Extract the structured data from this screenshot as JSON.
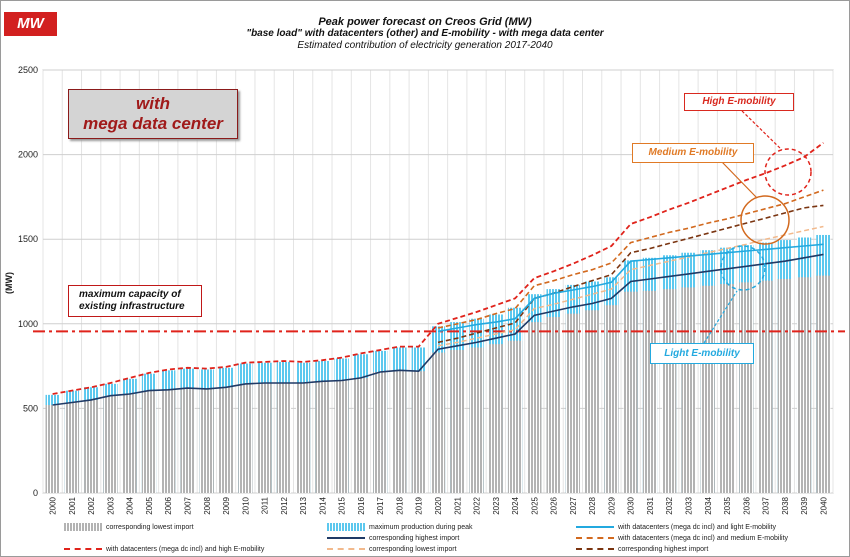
{
  "badge": "MW",
  "title_lines": [
    "Peak power forecast on Creos Grid (MW)",
    "\"base load\" with datacenters (other) and E-mobility  -  with mega data center",
    "Estimated contribution of electricity generation 2017-2040"
  ],
  "annotations": {
    "mega_line1": "with",
    "mega_line2": "mega data center",
    "max_capacity_line1": "maximum capacity of",
    "max_capacity_line2": "existing infrastructure",
    "high": "High E-mobility",
    "medium": "Medium E-mobility",
    "light": "Light E-mobility"
  },
  "colors": {
    "badge": "#d2201f",
    "grey_bar": "#b3b3b3",
    "cyan_bar": "#5cc8ee",
    "light_line": "#23a9df",
    "highest_line": "#1f3a66",
    "medium_line": "#d2691e",
    "high_line": "#e0231b",
    "lowest_dashed": "#f2b98c",
    "highest_dashed": "#7a3410",
    "capacity_line": "#e0231b"
  },
  "chart_data": {
    "type": "bar",
    "title": "Peak power forecast on Creos Grid (MW)",
    "ylabel": "(MW)",
    "ylim": [
      0,
      2500
    ],
    "yticks": [
      0,
      500,
      1000,
      1500,
      2000,
      2500
    ],
    "grid": true,
    "categories": [
      "2000",
      "2001",
      "2002",
      "2003",
      "2004",
      "2005",
      "2006",
      "2007",
      "2008",
      "2009",
      "2010",
      "2011",
      "2012",
      "2013",
      "2014",
      "2015",
      "2016",
      "2017",
      "2018",
      "2019",
      "2020",
      "2021",
      "2022",
      "2023",
      "2024",
      "2025",
      "2026",
      "2027",
      "2028",
      "2029",
      "2030",
      "2031",
      "2032",
      "2033",
      "2034",
      "2035",
      "2036",
      "2037",
      "2038",
      "2039",
      "2040"
    ],
    "capacity_line": 955,
    "series": [
      {
        "name": "corresponding lowest import",
        "kind": "bar",
        "values": [
          520,
          535,
          550,
          575,
          585,
          605,
          610,
          620,
          615,
          625,
          645,
          650,
          650,
          650,
          660,
          665,
          680,
          715,
          725,
          720,
          830,
          845,
          860,
          880,
          900,
          1010,
          1040,
          1060,
          1080,
          1110,
          1190,
          1195,
          1205,
          1215,
          1225,
          1235,
          1245,
          1255,
          1265,
          1275,
          1285
        ]
      },
      {
        "name": "maximum production during peak",
        "kind": "bar",
        "values": [
          580,
          605,
          625,
          645,
          675,
          705,
          725,
          735,
          730,
          740,
          765,
          770,
          775,
          770,
          780,
          795,
          820,
          840,
          860,
          860,
          985,
          1010,
          1030,
          1055,
          1095,
          1175,
          1205,
          1230,
          1250,
          1275,
          1375,
          1390,
          1405,
          1420,
          1435,
          1450,
          1465,
          1480,
          1495,
          1510,
          1525
        ]
      },
      {
        "name": "with datacenters (mega dc incl) and light E-mobility",
        "kind": "line",
        "values": [
          null,
          null,
          null,
          null,
          null,
          null,
          null,
          null,
          null,
          null,
          null,
          null,
          null,
          null,
          null,
          null,
          null,
          null,
          null,
          null,
          955,
          975,
          995,
          1010,
          1030,
          1150,
          1180,
          1200,
          1220,
          1245,
          1370,
          1380,
          1390,
          1400,
          1410,
          1420,
          1430,
          1440,
          1450,
          1460,
          1470
        ]
      },
      {
        "name": "corresponding highest import",
        "kind": "line",
        "values": [
          520,
          535,
          550,
          575,
          585,
          605,
          610,
          620,
          615,
          625,
          645,
          650,
          650,
          650,
          660,
          665,
          680,
          715,
          725,
          720,
          850,
          870,
          890,
          915,
          940,
          1050,
          1075,
          1100,
          1120,
          1150,
          1250,
          1265,
          1280,
          1295,
          1310,
          1325,
          1340,
          1355,
          1370,
          1390,
          1410
        ]
      },
      {
        "name": "with datacenters (mega dc incl) and medium E-mobility",
        "kind": "line",
        "values": [
          null,
          null,
          null,
          null,
          null,
          null,
          null,
          null,
          null,
          null,
          null,
          null,
          null,
          null,
          null,
          null,
          null,
          null,
          null,
          null,
          975,
          1000,
          1025,
          1060,
          1090,
          1225,
          1255,
          1290,
          1320,
          1360,
          1480,
          1510,
          1540,
          1565,
          1595,
          1620,
          1650,
          1680,
          1710,
          1750,
          1790
        ]
      },
      {
        "name": "with datacenters (mega dc incl) and high E-mobility",
        "kind": "line",
        "values": [
          585,
          605,
          625,
          650,
          680,
          710,
          730,
          740,
          735,
          745,
          770,
          775,
          780,
          775,
          785,
          800,
          825,
          845,
          865,
          865,
          1000,
          1035,
          1070,
          1110,
          1150,
          1270,
          1310,
          1355,
          1405,
          1460,
          1590,
          1630,
          1675,
          1715,
          1760,
          1805,
          1850,
          1890,
          1935,
          1985,
          2070
        ]
      },
      {
        "name": "corresponding lowest import",
        "kind": "line",
        "values": [
          null,
          null,
          null,
          null,
          null,
          null,
          null,
          null,
          null,
          null,
          null,
          null,
          null,
          null,
          null,
          null,
          null,
          null,
          null,
          null,
          870,
          890,
          915,
          940,
          965,
          1090,
          1115,
          1145,
          1175,
          1205,
          1320,
          1345,
          1370,
          1395,
          1420,
          1445,
          1470,
          1500,
          1525,
          1550,
          1575
        ]
      },
      {
        "name": "corresponding highest import",
        "kind": "line",
        "values": [
          null,
          null,
          null,
          null,
          null,
          null,
          null,
          null,
          null,
          null,
          null,
          null,
          null,
          null,
          null,
          null,
          null,
          null,
          null,
          null,
          890,
          915,
          945,
          975,
          1005,
          1150,
          1180,
          1220,
          1255,
          1290,
          1420,
          1445,
          1475,
          1505,
          1535,
          1565,
          1595,
          1625,
          1655,
          1685,
          1700
        ]
      }
    ]
  },
  "legend": [
    {
      "label": "corresponding lowest import"
    },
    {
      "label": "maximum production during peak"
    },
    {
      "label": "with datacenters (mega dc incl) and light E-mobility"
    },
    {
      "label": "corresponding highest import"
    },
    {
      "label": "with datacenters (mega dc incl) and medium E-mobility"
    },
    {
      "label": "with datacenters (mega dc incl) and high E-mobility"
    },
    {
      "label": "corresponding lowest import"
    },
    {
      "label": "corresponding highest import"
    }
  ]
}
